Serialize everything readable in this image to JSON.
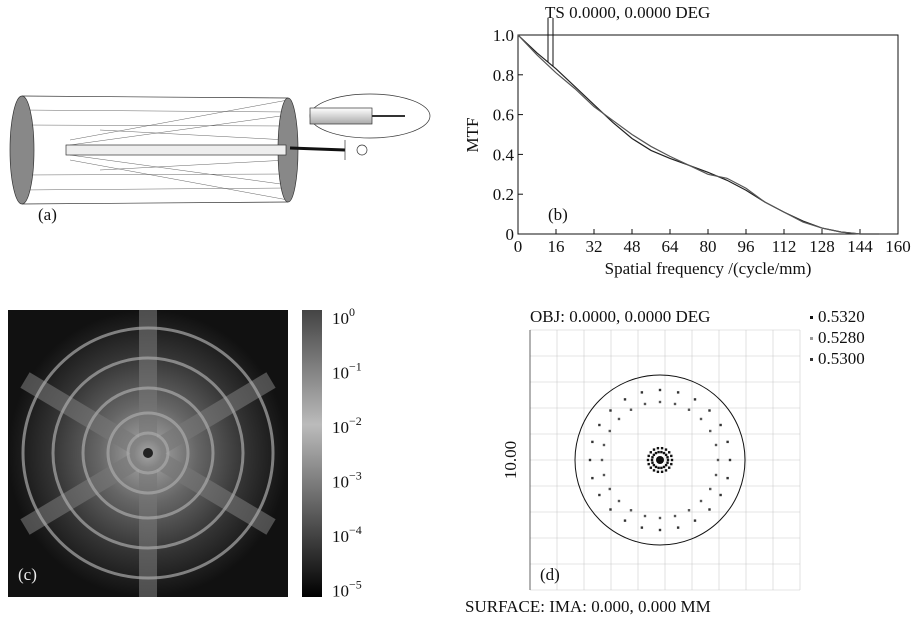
{
  "panels": {
    "a": {
      "label": "(a)"
    },
    "c": {
      "label": "(c)",
      "colorbar": [
        {
          "base": "10",
          "exp": "0"
        },
        {
          "base": "10",
          "exp": "−1"
        },
        {
          "base": "10",
          "exp": "−2"
        },
        {
          "base": "10",
          "exp": "−3"
        },
        {
          "base": "10",
          "exp": "−4"
        },
        {
          "base": "10",
          "exp": "−5"
        }
      ]
    },
    "d": {
      "label": "(d)",
      "title": "OBJ: 0.0000, 0.0000 DEG",
      "legend": [
        "0.5320",
        "0.5280",
        "0.5300"
      ],
      "scale": "10.00",
      "footer": "SURFACE: IMA: 0.000, 0.000 MM"
    }
  },
  "chart_data": {
    "type": "line",
    "title": "TS 0.0000, 0.0000 DEG",
    "panel_label": "(b)",
    "x_label": "Spatial frequency /(cycle/mm)",
    "y_label": "MTF",
    "x": [
      0,
      8,
      16,
      24,
      32,
      40,
      48,
      56,
      64,
      72,
      80,
      88,
      96,
      104,
      112,
      120,
      128,
      136,
      144,
      152
    ],
    "series": [
      {
        "color": "#222",
        "values": [
          1.0,
          0.91,
          0.83,
          0.74,
          0.65,
          0.56,
          0.48,
          0.42,
          0.38,
          0.345,
          0.31,
          0.27,
          0.22,
          0.16,
          0.11,
          0.065,
          0.03,
          0.01,
          0.0,
          0.0
        ]
      },
      {
        "color": "#555",
        "values": [
          1.0,
          0.9,
          0.81,
          0.73,
          0.64,
          0.57,
          0.5,
          0.44,
          0.39,
          0.345,
          0.3,
          0.28,
          0.23,
          0.16,
          0.11,
          0.06,
          0.03,
          0.01,
          0.0,
          0.0
        ]
      }
    ],
    "xlim": [
      0,
      160
    ],
    "xticks": [
      0,
      16,
      32,
      48,
      64,
      80,
      96,
      112,
      128,
      144,
      160
    ],
    "ylim": [
      0,
      1
    ],
    "yticks": [
      0,
      0.2,
      0.4,
      0.6,
      0.8,
      {
        "value": 1,
        "label": "1.0"
      }
    ]
  }
}
